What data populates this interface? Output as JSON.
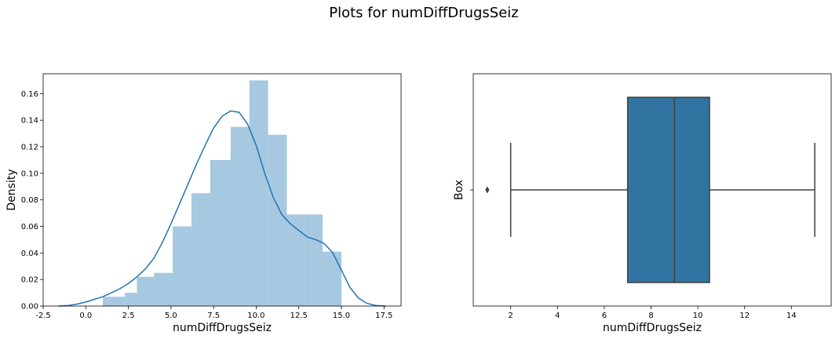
{
  "figure": {
    "suptitle": "Plots for numDiffDrugsSeiz"
  },
  "colors": {
    "hist": "#a6c8e0",
    "kde": "#1f77b4",
    "box": "#3274a1",
    "line": "#3f3f3f"
  },
  "chart_data": [
    {
      "type": "histogram",
      "xlabel": "numDiffDrugsSeiz",
      "ylabel": "Density",
      "xlim": [
        -2.5,
        18.5
      ],
      "ylim": [
        0,
        0.175
      ],
      "xticks": [
        -2.5,
        0.0,
        2.5,
        5.0,
        7.5,
        10.0,
        12.5,
        15.0,
        17.5
      ],
      "xtick_labels": [
        "-2.5",
        "0.0",
        "2.5",
        "5.0",
        "7.5",
        "10.0",
        "12.5",
        "15.0",
        "17.5"
      ],
      "yticks": [
        0.0,
        0.02,
        0.04,
        0.06,
        0.08,
        0.1,
        0.12,
        0.14,
        0.16
      ],
      "ytick_labels": [
        "0.00",
        "0.02",
        "0.04",
        "0.06",
        "0.08",
        "0.10",
        "0.12",
        "0.14",
        "0.16"
      ],
      "grid": false,
      "bins": [
        {
          "start": 1.0,
          "end": 2.3,
          "density": 0.007
        },
        {
          "start": 2.3,
          "end": 3.0,
          "density": 0.01
        },
        {
          "start": 3.0,
          "end": 4.0,
          "density": 0.022
        },
        {
          "start": 4.0,
          "end": 5.1,
          "density": 0.025
        },
        {
          "start": 5.1,
          "end": 6.2,
          "density": 0.06
        },
        {
          "start": 6.2,
          "end": 7.3,
          "density": 0.085
        },
        {
          "start": 7.3,
          "end": 8.5,
          "density": 0.11
        },
        {
          "start": 8.5,
          "end": 9.6,
          "density": 0.135
        },
        {
          "start": 9.6,
          "end": 10.7,
          "density": 0.17
        },
        {
          "start": 10.7,
          "end": 11.8,
          "density": 0.129
        },
        {
          "start": 11.8,
          "end": 12.8,
          "density": 0.069
        },
        {
          "start": 12.8,
          "end": 13.9,
          "density": 0.069
        },
        {
          "start": 13.9,
          "end": 15.0,
          "density": 0.041
        }
      ],
      "kde": {
        "x": [
          -1.6,
          -1.0,
          -0.5,
          0.0,
          0.5,
          1.0,
          1.5,
          2.0,
          2.5,
          3.0,
          3.5,
          4.0,
          4.5,
          5.0,
          5.5,
          6.0,
          6.5,
          7.0,
          7.5,
          8.0,
          8.5,
          9.0,
          9.5,
          10.0,
          10.5,
          11.0,
          11.5,
          12.0,
          12.5,
          13.0,
          13.5,
          14.0,
          14.5,
          15.0,
          15.5,
          16.0,
          16.5,
          17.0,
          17.6
        ],
        "y": [
          0.0,
          0.0005,
          0.0015,
          0.003,
          0.005,
          0.007,
          0.01,
          0.013,
          0.017,
          0.022,
          0.028,
          0.036,
          0.048,
          0.062,
          0.077,
          0.092,
          0.107,
          0.121,
          0.134,
          0.143,
          0.147,
          0.146,
          0.137,
          0.121,
          0.1,
          0.082,
          0.069,
          0.062,
          0.057,
          0.052,
          0.05,
          0.047,
          0.04,
          0.027,
          0.014,
          0.006,
          0.002,
          0.0005,
          0.0
        ]
      }
    },
    {
      "type": "box",
      "xlabel": "numDiffDrugsSeiz",
      "ylabel": "Box",
      "xlim": [
        0.4,
        15.7
      ],
      "xticks": [
        2,
        4,
        6,
        8,
        10,
        12,
        14
      ],
      "xtick_labels": [
        "2",
        "4",
        "6",
        "8",
        "10",
        "12",
        "14"
      ],
      "grid": false,
      "whisker_low": 2,
      "q1": 7,
      "median": 9,
      "q3": 10.5,
      "whisker_high": 15,
      "outliers": [
        1
      ]
    }
  ]
}
